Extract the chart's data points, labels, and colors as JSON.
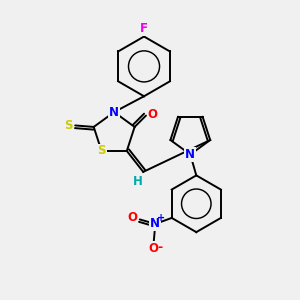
{
  "bg_color": "#f0f0f0",
  "bond_color": "#000000",
  "atom_colors": {
    "F": "#ee00ee",
    "N": "#0000ff",
    "O": "#ff0000",
    "S": "#cccc00",
    "H": "#00aaaa",
    "N_nitro": "#0000ff",
    "O_nitro": "#ff0000"
  },
  "font_size": 8.5,
  "figsize": [
    3.0,
    3.0
  ],
  "dpi": 100
}
